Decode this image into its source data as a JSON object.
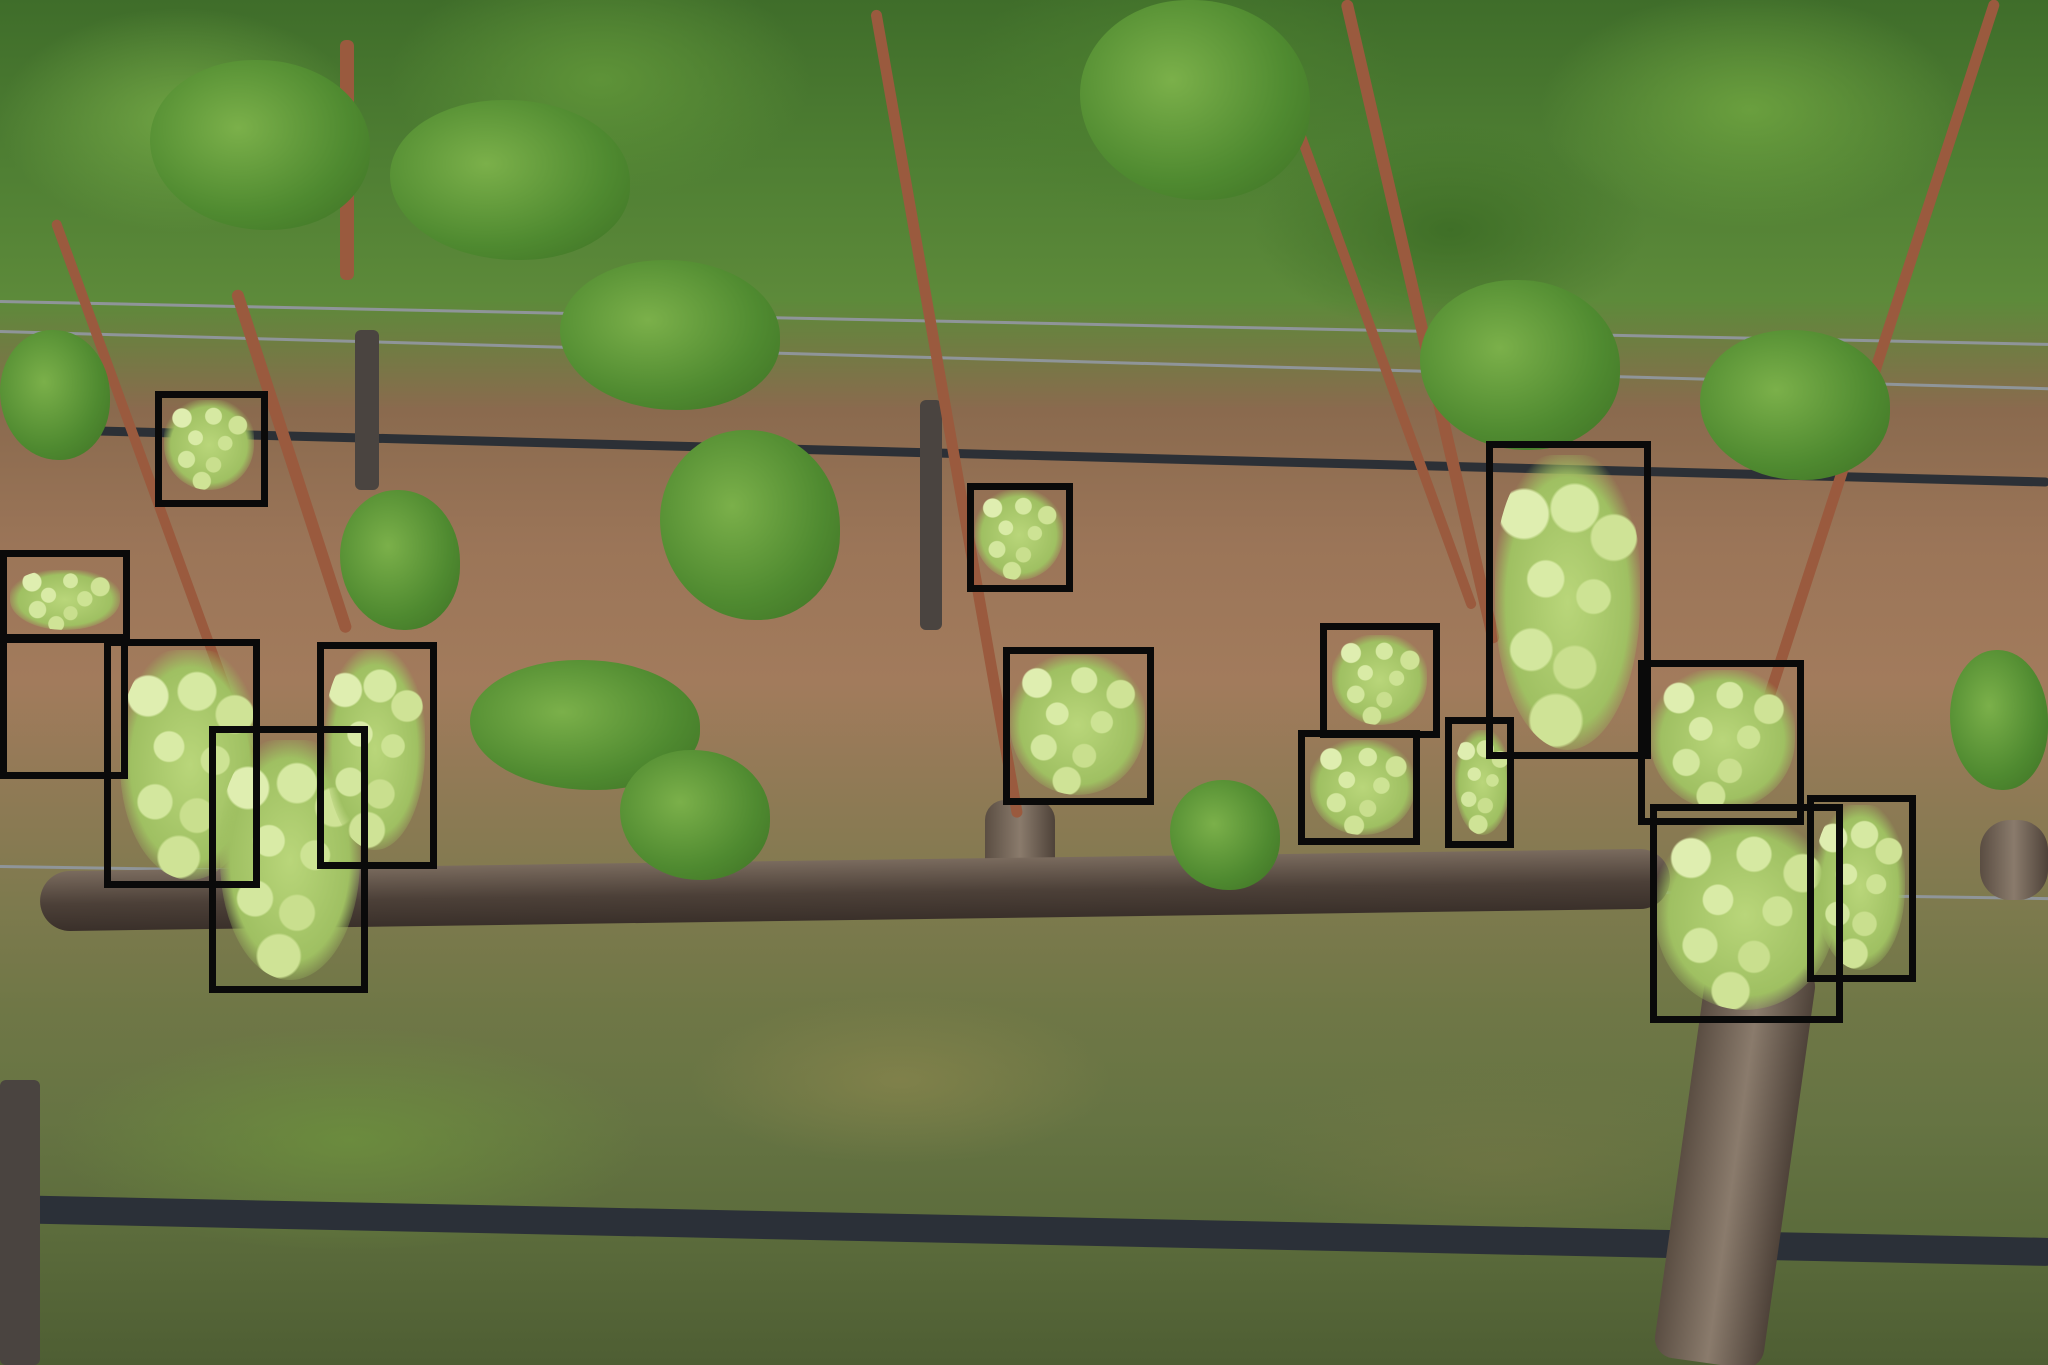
{
  "image": {
    "subject": "grapevine",
    "annotation_color": "#0a0a0a",
    "detection_count": 18
  }
}
